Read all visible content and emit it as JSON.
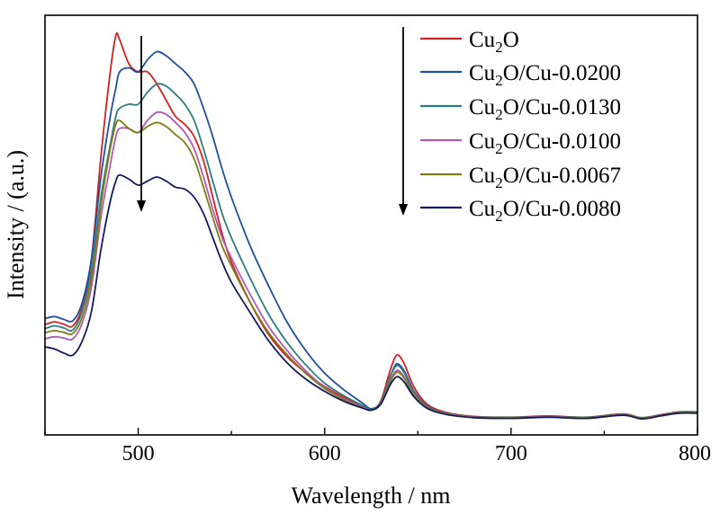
{
  "chart_data": {
    "type": "line",
    "xlabel": "Wavelength / nm",
    "ylabel": "Intensity / (a.u.)",
    "xlim": [
      450,
      800
    ],
    "ylim": [
      0,
      100
    ],
    "xticks": [
      500,
      600,
      700,
      800
    ],
    "y_ticks_labeled": false,
    "grid": false,
    "legend_position": "top-right",
    "annotations": [
      "downward arrow over main emission peak",
      "downward arrow beside legend"
    ],
    "series": [
      {
        "name": "Cu2O",
        "legend": {
          "base": "Cu",
          "sub": "2",
          "rest": "O"
        },
        "color": "#d42020",
        "points": [
          [
            450,
            23.5
          ],
          [
            455,
            24.2
          ],
          [
            460,
            23.6
          ],
          [
            465,
            23.2
          ],
          [
            470,
            28
          ],
          [
            475,
            40
          ],
          [
            480,
            65
          ],
          [
            485,
            86
          ],
          [
            488,
            95
          ],
          [
            490,
            94
          ],
          [
            495,
            88
          ],
          [
            500,
            86
          ],
          [
            505,
            86
          ],
          [
            510,
            83
          ],
          [
            515,
            79
          ],
          [
            520,
            75
          ],
          [
            525,
            73
          ],
          [
            530,
            70
          ],
          [
            535,
            64
          ],
          [
            540,
            55
          ],
          [
            545,
            46
          ],
          [
            550,
            39
          ],
          [
            560,
            29
          ],
          [
            570,
            21
          ],
          [
            580,
            15.5
          ],
          [
            590,
            11.5
          ],
          [
            600,
            8.2
          ],
          [
            610,
            5.6
          ],
          [
            620,
            3.3
          ],
          [
            625,
            2.6
          ],
          [
            630,
            4.5
          ],
          [
            635,
            12
          ],
          [
            638,
            15.6
          ],
          [
            640,
            15.8
          ],
          [
            643,
            13.5
          ],
          [
            648,
            8
          ],
          [
            655,
            3.8
          ],
          [
            665,
            1.8
          ],
          [
            680,
            0.8
          ],
          [
            700,
            0.6
          ],
          [
            720,
            0.9
          ],
          [
            740,
            0.6
          ],
          [
            760,
            1.4
          ],
          [
            770,
            0.5
          ],
          [
            780,
            1.2
          ],
          [
            790,
            1.9
          ],
          [
            800,
            1.9
          ]
        ]
      },
      {
        "name": "Cu2O/Cu-0.0200",
        "legend": {
          "base": "Cu",
          "sub": "2",
          "rest": "O/Cu-0.0200"
        },
        "color": "#1f4fa0",
        "points": [
          [
            450,
            25
          ],
          [
            455,
            25.5
          ],
          [
            460,
            24.8
          ],
          [
            465,
            24.5
          ],
          [
            470,
            29
          ],
          [
            475,
            40
          ],
          [
            480,
            60
          ],
          [
            485,
            75
          ],
          [
            488,
            82
          ],
          [
            490,
            86
          ],
          [
            495,
            87
          ],
          [
            500,
            86
          ],
          [
            505,
            89
          ],
          [
            510,
            91
          ],
          [
            515,
            90
          ],
          [
            520,
            88
          ],
          [
            525,
            86
          ],
          [
            530,
            83
          ],
          [
            535,
            77
          ],
          [
            540,
            70
          ],
          [
            545,
            62
          ],
          [
            550,
            55
          ],
          [
            560,
            43
          ],
          [
            570,
            33
          ],
          [
            580,
            24
          ],
          [
            590,
            17
          ],
          [
            600,
            11.5
          ],
          [
            610,
            7.5
          ],
          [
            620,
            4.2
          ],
          [
            625,
            2.7
          ],
          [
            630,
            4.2
          ],
          [
            635,
            10.5
          ],
          [
            638,
            13.5
          ],
          [
            640,
            13.6
          ],
          [
            643,
            11.8
          ],
          [
            648,
            7
          ],
          [
            655,
            3.4
          ],
          [
            665,
            1.6
          ],
          [
            680,
            0.7
          ],
          [
            700,
            0.5
          ],
          [
            720,
            0.8
          ],
          [
            740,
            0.5
          ],
          [
            760,
            1.3
          ],
          [
            770,
            0.4
          ],
          [
            780,
            1.1
          ],
          [
            790,
            1.8
          ],
          [
            800,
            1.8
          ]
        ]
      },
      {
        "name": "Cu2O/Cu-0.0130",
        "legend": {
          "base": "Cu",
          "sub": "2",
          "rest": "O/Cu-0.0130"
        },
        "color": "#2e7d80",
        "points": [
          [
            450,
            22.5
          ],
          [
            455,
            23.2
          ],
          [
            460,
            22.7
          ],
          [
            465,
            22.2
          ],
          [
            470,
            27
          ],
          [
            475,
            37
          ],
          [
            480,
            55
          ],
          [
            485,
            68
          ],
          [
            488,
            75
          ],
          [
            490,
            77
          ],
          [
            495,
            78
          ],
          [
            500,
            78
          ],
          [
            505,
            81
          ],
          [
            510,
            83
          ],
          [
            515,
            82.5
          ],
          [
            520,
            80.5
          ],
          [
            525,
            78
          ],
          [
            530,
            74
          ],
          [
            535,
            67
          ],
          [
            540,
            59
          ],
          [
            545,
            51
          ],
          [
            550,
            45
          ],
          [
            560,
            35
          ],
          [
            570,
            26
          ],
          [
            580,
            19
          ],
          [
            590,
            13.5
          ],
          [
            600,
            9
          ],
          [
            610,
            6
          ],
          [
            620,
            3.6
          ],
          [
            625,
            2.6
          ],
          [
            630,
            4.2
          ],
          [
            635,
            10.5
          ],
          [
            638,
            13.1
          ],
          [
            640,
            13.2
          ],
          [
            643,
            11.3
          ],
          [
            648,
            6.8
          ],
          [
            655,
            3.3
          ],
          [
            665,
            1.6
          ],
          [
            680,
            0.7
          ],
          [
            700,
            0.5
          ],
          [
            720,
            0.8
          ],
          [
            740,
            0.5
          ],
          [
            760,
            1.3
          ],
          [
            770,
            0.4
          ],
          [
            780,
            1.1
          ],
          [
            790,
            1.8
          ],
          [
            800,
            1.8
          ]
        ]
      },
      {
        "name": "Cu2O/Cu-0.0100",
        "legend": {
          "base": "Cu",
          "sub": "2",
          "rest": "O/Cu-0.0100"
        },
        "color": "#b257b2",
        "points": [
          [
            450,
            20
          ],
          [
            455,
            20.5
          ],
          [
            460,
            20.2
          ],
          [
            465,
            20
          ],
          [
            470,
            24
          ],
          [
            475,
            33
          ],
          [
            480,
            50
          ],
          [
            485,
            63
          ],
          [
            488,
            70
          ],
          [
            490,
            72
          ],
          [
            495,
            72
          ],
          [
            500,
            71
          ],
          [
            505,
            74
          ],
          [
            510,
            76
          ],
          [
            515,
            75.5
          ],
          [
            520,
            73.5
          ],
          [
            525,
            71
          ],
          [
            530,
            67
          ],
          [
            535,
            60
          ],
          [
            540,
            52
          ],
          [
            545,
            45
          ],
          [
            550,
            40
          ],
          [
            560,
            31
          ],
          [
            570,
            23
          ],
          [
            580,
            17
          ],
          [
            590,
            12
          ],
          [
            600,
            8
          ],
          [
            610,
            5.2
          ],
          [
            620,
            3.2
          ],
          [
            625,
            2.4
          ],
          [
            630,
            3.9
          ],
          [
            635,
            9.5
          ],
          [
            638,
            11.9
          ],
          [
            640,
            12
          ],
          [
            643,
            10.3
          ],
          [
            648,
            6.3
          ],
          [
            655,
            3.1
          ],
          [
            665,
            1.5
          ],
          [
            680,
            0.6
          ],
          [
            700,
            0.4
          ],
          [
            720,
            0.7
          ],
          [
            740,
            0.4
          ],
          [
            760,
            1.2
          ],
          [
            770,
            0.3
          ],
          [
            780,
            1
          ],
          [
            790,
            1.7
          ],
          [
            800,
            1.7
          ]
        ]
      },
      {
        "name": "Cu2O/Cu-0.0067",
        "legend": {
          "base": "Cu",
          "sub": "2",
          "rest": "O/Cu-0.0067"
        },
        "color": "#7d7d16",
        "points": [
          [
            450,
            21.5
          ],
          [
            455,
            22
          ],
          [
            460,
            21.6
          ],
          [
            465,
            21.3
          ],
          [
            470,
            25.5
          ],
          [
            475,
            35
          ],
          [
            480,
            53
          ],
          [
            485,
            67
          ],
          [
            488,
            73
          ],
          [
            490,
            74
          ],
          [
            495,
            72
          ],
          [
            500,
            71
          ],
          [
            505,
            72.5
          ],
          [
            510,
            73.5
          ],
          [
            515,
            72.5
          ],
          [
            520,
            70.5
          ],
          [
            525,
            68.5
          ],
          [
            530,
            64.5
          ],
          [
            535,
            57.5
          ],
          [
            540,
            50
          ],
          [
            545,
            43
          ],
          [
            550,
            38
          ],
          [
            560,
            29
          ],
          [
            570,
            21.5
          ],
          [
            580,
            16
          ],
          [
            590,
            11.4
          ],
          [
            600,
            7.7
          ],
          [
            610,
            5
          ],
          [
            620,
            3
          ],
          [
            625,
            2.3
          ],
          [
            630,
            3.8
          ],
          [
            635,
            9.2
          ],
          [
            638,
            11.5
          ],
          [
            640,
            11.6
          ],
          [
            643,
            10
          ],
          [
            648,
            6.1
          ],
          [
            655,
            3
          ],
          [
            665,
            1.4
          ],
          [
            680,
            0.6
          ],
          [
            700,
            0.4
          ],
          [
            720,
            0.7
          ],
          [
            740,
            0.4
          ],
          [
            760,
            1.2
          ],
          [
            770,
            0.3
          ],
          [
            780,
            1
          ],
          [
            790,
            1.7
          ],
          [
            800,
            1.7
          ]
        ]
      },
      {
        "name": "Cu2O/Cu-0.0080",
        "legend": {
          "base": "Cu",
          "sub": "2",
          "rest": "O/Cu-0.0080"
        },
        "color": "#141b5c",
        "points": [
          [
            450,
            18
          ],
          [
            455,
            17.5
          ],
          [
            460,
            16.5
          ],
          [
            465,
            16
          ],
          [
            470,
            19.5
          ],
          [
            475,
            27
          ],
          [
            480,
            42
          ],
          [
            485,
            54
          ],
          [
            488,
            59
          ],
          [
            490,
            60.5
          ],
          [
            495,
            59.5
          ],
          [
            500,
            58
          ],
          [
            505,
            59
          ],
          [
            510,
            60
          ],
          [
            515,
            59
          ],
          [
            520,
            57.5
          ],
          [
            525,
            57
          ],
          [
            530,
            55
          ],
          [
            535,
            51
          ],
          [
            540,
            45
          ],
          [
            545,
            39
          ],
          [
            550,
            34
          ],
          [
            560,
            26.5
          ],
          [
            570,
            19.5
          ],
          [
            580,
            14
          ],
          [
            590,
            10
          ],
          [
            600,
            7
          ],
          [
            610,
            4.6
          ],
          [
            620,
            2.9
          ],
          [
            625,
            2.4
          ],
          [
            630,
            3.8
          ],
          [
            635,
            8.5
          ],
          [
            638,
            10.4
          ],
          [
            640,
            10.5
          ],
          [
            643,
            9.1
          ],
          [
            648,
            5.6
          ],
          [
            655,
            2.8
          ],
          [
            665,
            1.3
          ],
          [
            680,
            0.5
          ],
          [
            700,
            0.3
          ],
          [
            720,
            0.6
          ],
          [
            740,
            0.3
          ],
          [
            760,
            1.1
          ],
          [
            770,
            0.2
          ],
          [
            780,
            0.9
          ],
          [
            790,
            1.6
          ],
          [
            800,
            1.6
          ]
        ]
      }
    ]
  }
}
